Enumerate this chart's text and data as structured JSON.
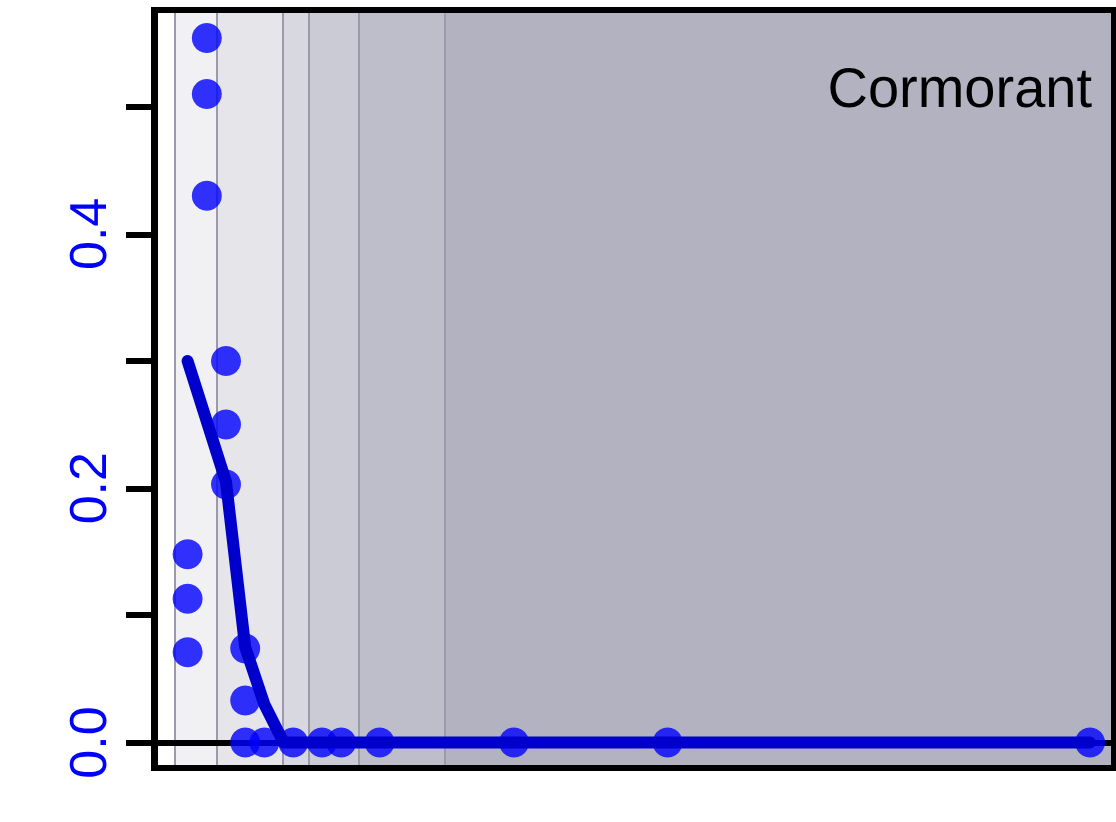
{
  "chart_data": {
    "type": "scatter",
    "annotations": [
      "Cormorant"
    ],
    "categories": [
      null,
      null,
      null,
      null,
      null,
      null,
      null,
      null,
      null,
      null,
      null,
      null,
      null,
      null,
      null,
      null,
      null,
      null,
      null,
      null,
      null,
      null,
      null,
      null,
      null,
      null,
      null,
      null,
      null,
      null,
      null,
      null,
      null,
      null,
      null,
      null,
      null,
      null,
      null,
      null,
      null,
      null,
      null,
      null,
      null,
      null,
      null,
      null,
      null,
      null,
      null,
      null,
      null,
      null,
      null,
      null,
      null,
      null,
      null,
      null,
      null,
      null,
      null,
      null,
      null,
      null,
      null,
      null,
      null,
      null,
      null,
      null,
      null,
      null,
      null,
      null,
      null,
      null,
      null,
      null,
      null,
      null,
      null,
      null,
      null,
      null,
      null,
      null,
      null,
      null,
      null,
      null,
      null,
      null,
      null,
      null,
      null,
      null,
      null,
      null
    ],
    "ylim": [
      -0.02,
      0.576
    ],
    "yticks": [
      {
        "value": 0,
        "label": "0.0"
      },
      {
        "value": 0.1,
        "label": null
      },
      0.2,
      {
        "value": 0.3,
        "label": null
      },
      0.4,
      {
        "value": 0.5,
        "label": null
      }
    ],
    "tick_labels": "y",
    "series": [
      {
        "color": "#0000ff",
        "marker": "circle",
        "values": [
          null,
          null,
          null,
          0.148,
          null,
          0.554,
          null,
          0.3,
          null,
          0.074,
          null,
          0,
          null,
          null,
          0,
          null,
          null,
          0,
          null,
          0,
          null,
          null,
          null,
          0,
          null,
          null,
          null,
          null,
          null,
          null,
          null,
          null,
          null,
          null,
          null,
          null,
          null,
          0,
          null,
          null,
          null,
          null,
          null,
          null,
          null,
          null,
          null,
          null,
          null,
          null,
          null,
          null,
          null,
          0,
          null,
          null,
          null,
          null,
          null,
          null,
          null,
          null,
          null,
          null,
          null,
          null,
          null,
          null,
          null,
          null,
          null,
          null,
          null,
          null,
          null,
          null,
          null,
          null,
          null,
          null,
          null,
          null,
          null,
          null,
          null,
          null,
          null,
          null,
          null,
          null,
          null,
          null,
          null,
          null,
          null,
          null,
          null,
          0,
          null,
          null
        ]
      },
      {
        "color": "#0000ff",
        "marker": "circle",
        "values": [
          null,
          null,
          null,
          0.113,
          null,
          0.51,
          null,
          0.25,
          null,
          0.033,
          null,
          null,
          null,
          null,
          null,
          null,
          null,
          null,
          null,
          null,
          null,
          null,
          null,
          null,
          null,
          null,
          null,
          null,
          null,
          null,
          null,
          null,
          null,
          null,
          null,
          null,
          null,
          null,
          null,
          null,
          null,
          null,
          null,
          null,
          null,
          null,
          null,
          null,
          null,
          null,
          null,
          null,
          null,
          null,
          null,
          null,
          null,
          null,
          null,
          null,
          null,
          null,
          null,
          null,
          null,
          null,
          null,
          null,
          null,
          null,
          null,
          null,
          null,
          null,
          null,
          null,
          null,
          null,
          null,
          null,
          null,
          null,
          null,
          null,
          null,
          null,
          null,
          null,
          null,
          null,
          null,
          null,
          null,
          null,
          null,
          null,
          null,
          null,
          null,
          null
        ]
      },
      {
        "color": "#0000ff",
        "marker": "circle",
        "values": [
          null,
          null,
          null,
          0.071,
          null,
          0.43,
          null,
          0.203,
          null,
          0,
          null,
          null,
          null,
          null,
          null,
          null,
          null,
          null,
          null,
          null,
          null,
          null,
          null,
          null,
          null,
          null,
          null,
          null,
          null,
          null,
          null,
          null,
          null,
          null,
          null,
          null,
          null,
          null,
          null,
          null,
          null,
          null,
          null,
          null,
          null,
          null,
          null,
          null,
          null,
          null,
          null,
          null,
          null,
          null,
          null,
          null,
          null,
          null,
          null,
          null,
          null,
          null,
          null,
          null,
          null,
          null,
          null,
          null,
          null,
          null,
          null,
          null,
          null,
          null,
          null,
          null,
          null,
          null,
          null,
          null,
          null,
          null,
          null,
          null,
          null,
          null,
          null,
          null,
          null,
          null,
          null,
          null,
          null,
          null,
          null,
          null,
          null,
          null,
          null,
          null
        ]
      },
      {
        "type": "line",
        "color": "#0000cc",
        "line_style": "solid",
        "marker": "none",
        "values": [
          null,
          null,
          null,
          0.3,
          null,
          null,
          null,
          0.205,
          null,
          0.075,
          null,
          0.03,
          null,
          0,
          0,
          null,
          null,
          0,
          null,
          0,
          null,
          null,
          null,
          0,
          null,
          null,
          null,
          null,
          null,
          null,
          null,
          null,
          null,
          null,
          null,
          null,
          null,
          0,
          null,
          null,
          null,
          null,
          null,
          null,
          null,
          null,
          null,
          null,
          null,
          null,
          null,
          null,
          null,
          0,
          null,
          null,
          null,
          null,
          null,
          null,
          null,
          null,
          null,
          null,
          null,
          null,
          null,
          null,
          null,
          null,
          null,
          null,
          null,
          null,
          null,
          null,
          null,
          null,
          null,
          null,
          null,
          null,
          null,
          null,
          null,
          null,
          null,
          null,
          null,
          null,
          null,
          null,
          null,
          null,
          null,
          null,
          null,
          0,
          null,
          null
        ]
      }
    ]
  }
}
